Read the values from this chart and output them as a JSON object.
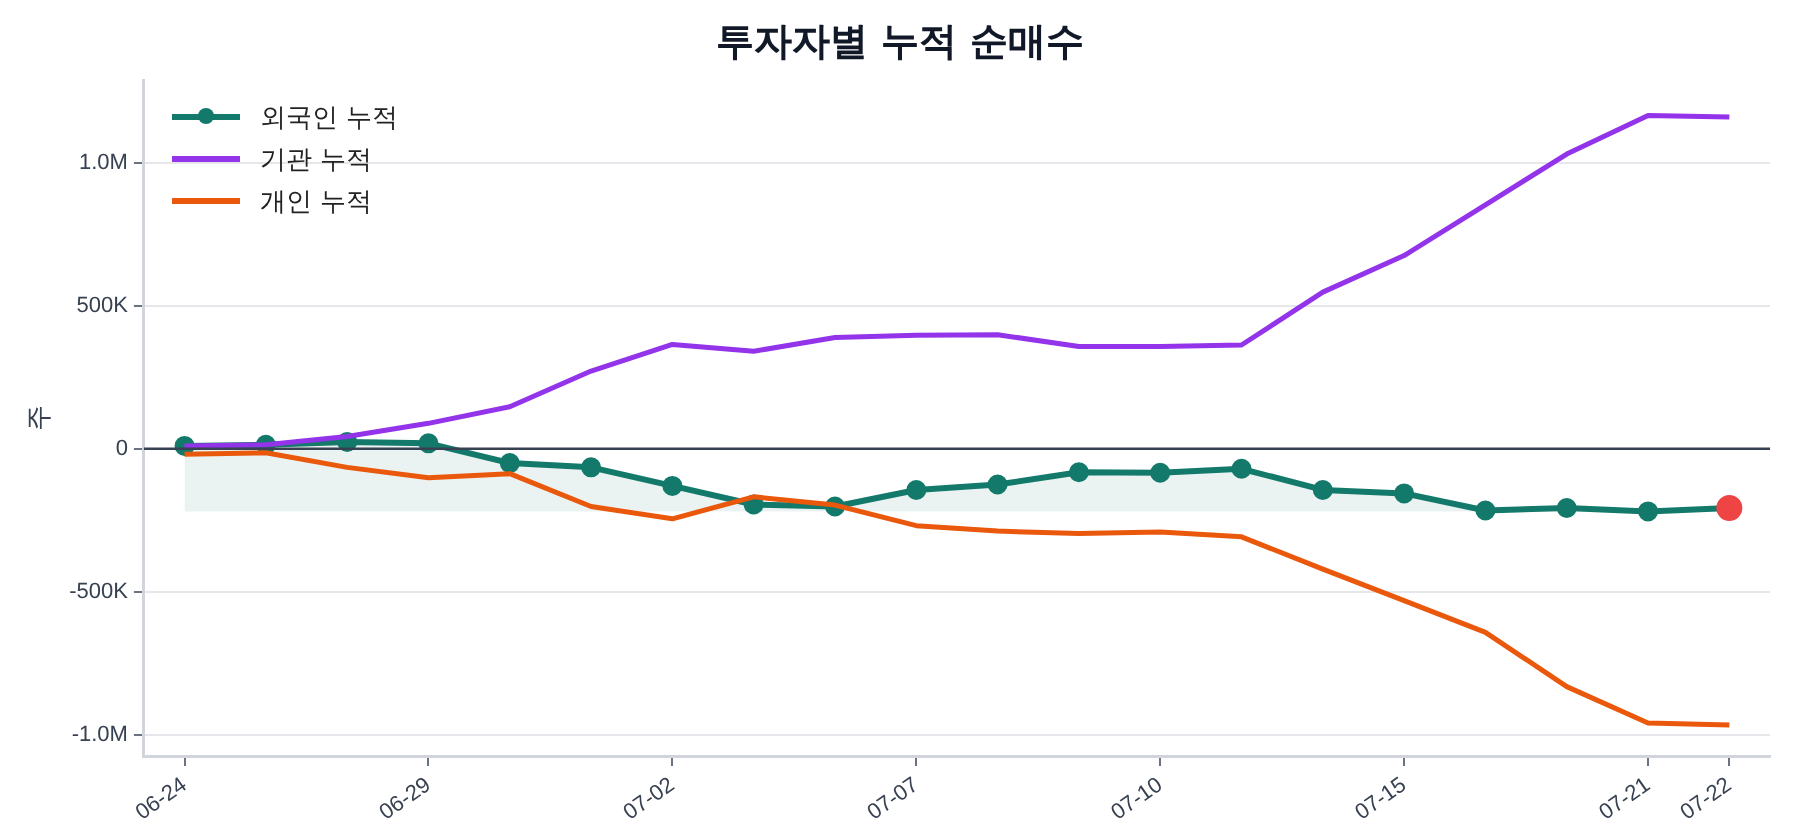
{
  "chart_data": {
    "type": "line",
    "title": "투자자별 누적 순매수",
    "ylabel": "주",
    "categories": [
      "06-24",
      null,
      null,
      "06-29",
      null,
      null,
      "07-02",
      null,
      null,
      "07-07",
      null,
      null,
      "07-10",
      null,
      null,
      "07-15",
      null,
      null,
      "07-21",
      "07-22"
    ],
    "series": [
      {
        "name": "외국인 누적",
        "color": "#13796b",
        "marker": "circle",
        "colors": [
          "#13796b",
          "#13796b",
          "#13796b",
          "#13796b",
          "#13796b",
          "#13796b",
          "#13796b",
          "#13796b",
          "#13796b",
          "#13796b",
          "#13796b",
          "#13796b",
          "#13796b",
          "#13796b",
          "#13796b",
          "#13796b",
          "#13796b",
          "#13796b",
          "#13796b",
          "#ef4444"
        ],
        "values": [
          10000,
          14000,
          24000,
          19000,
          -50000,
          -65000,
          -130000,
          -195000,
          -202000,
          -144000,
          -125000,
          -82000,
          -84000,
          -70000,
          -144000,
          -156000,
          -216000,
          -207000,
          -219000,
          -207000
        ],
        "lower": [
          -219000,
          -219000,
          -219000,
          -219000,
          -219000,
          -219000,
          -219000,
          -219000,
          -219000,
          -219000,
          -219000,
          -219000,
          -219000,
          -219000,
          -219000,
          -219000,
          -219000,
          -219000,
          -219000,
          -219000
        ],
        "upper": [
          10000,
          14000,
          24000,
          19000,
          -50000,
          -65000,
          -130000,
          -195000,
          -202000,
          -144000,
          -125000,
          -82000,
          -84000,
          -70000,
          -144000,
          -156000,
          -216000,
          -207000,
          -219000,
          -207000
        ]
      },
      {
        "name": "기관 누적",
        "color": "#9333ea",
        "marker": "none",
        "values": [
          10000,
          14000,
          43000,
          89000,
          147000,
          272000,
          365000,
          341000,
          389000,
          397000,
          399000,
          358000,
          358000,
          363000,
          548000,
          676000,
          853000,
          1031000,
          1166000,
          1161000
        ]
      },
      {
        "name": "개인 누적",
        "color": "#ea580c",
        "marker": "none",
        "values": [
          -19000,
          -14000,
          -65000,
          -101000,
          -87000,
          -202000,
          -245000,
          -168000,
          -197000,
          -269000,
          -288000,
          -296000,
          -291000,
          -308000,
          -421000,
          -531000,
          -642000,
          -832000,
          -959000,
          -966000
        ]
      }
    ],
    "ylim": [
      -1075000,
      1290000
    ],
    "yticks": [
      {
        "value": -1000000,
        "label": "-1.0M"
      },
      {
        "value": -500000,
        "label": "-500K"
      },
      0,
      {
        "value": 500000,
        "label": "500K"
      },
      {
        "value": 1000000,
        "label": "1.0M"
      }
    ],
    "ref_lines": [
      {
        "axis": "y",
        "value": 0,
        "color": "#374151"
      }
    ],
    "grid": "y",
    "legend": "top left",
    "line_style": "solid"
  }
}
